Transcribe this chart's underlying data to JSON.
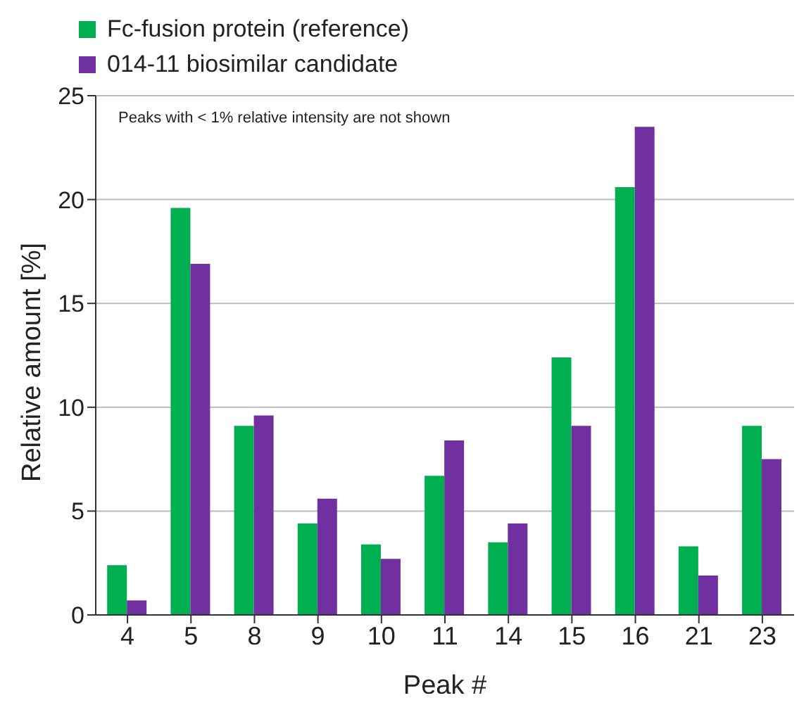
{
  "chart_data": {
    "type": "bar",
    "xlabel": "Peak #",
    "ylabel": "Relative amount [%]",
    "categories": [
      "4",
      "5",
      "8",
      "9",
      "10",
      "11",
      "14",
      "15",
      "16",
      "21",
      "23"
    ],
    "series": [
      {
        "name": "Fc-fusion protein (reference)",
        "color": "#00b050",
        "values": [
          2.4,
          19.6,
          9.1,
          4.4,
          3.4,
          6.7,
          3.5,
          12.4,
          20.6,
          3.3,
          9.1
        ]
      },
      {
        "name": "014-11 biosimilar candidate",
        "color": "#7030a0",
        "values": [
          0.7,
          16.9,
          9.6,
          5.6,
          2.7,
          8.4,
          4.4,
          9.1,
          23.5,
          1.9,
          7.5
        ]
      }
    ],
    "ylim": [
      0,
      25
    ],
    "yticks": [
      0,
      5,
      10,
      15,
      20,
      25
    ],
    "grid": "y",
    "legend": "top left",
    "annotations": [
      "Peaks with < 1% relative intensity are not shown"
    ]
  }
}
